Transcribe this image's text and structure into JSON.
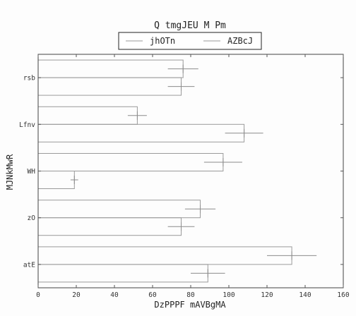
{
  "chart_data": {
    "type": "bar",
    "orientation": "horizontal",
    "title": "Q tmgJEU  M Pm",
    "xlabel": "DzPPPF mAVBgMA",
    "ylabel": "MJNkMwR",
    "categories": [
      "atE",
      "zO",
      "WH",
      "Lfnv",
      "rsb"
    ],
    "xlim": [
      0,
      160
    ],
    "xticks": [
      0,
      20,
      40,
      60,
      80,
      100,
      120,
      140,
      160
    ],
    "grid": false,
    "legend_position": "top-center",
    "series": [
      {
        "name": "jhOTn",
        "values": [
          89,
          75,
          19,
          108,
          75
        ],
        "errors": [
          9,
          7,
          2,
          10,
          7
        ]
      },
      {
        "name": "AZBcJ",
        "values": [
          133,
          85,
          97,
          52,
          76
        ],
        "errors": [
          13,
          8,
          10,
          5,
          8
        ]
      }
    ],
    "colors": {
      "edge": "#9a9a9a",
      "error": "#8c8c8c",
      "axis": "#555555"
    }
  }
}
